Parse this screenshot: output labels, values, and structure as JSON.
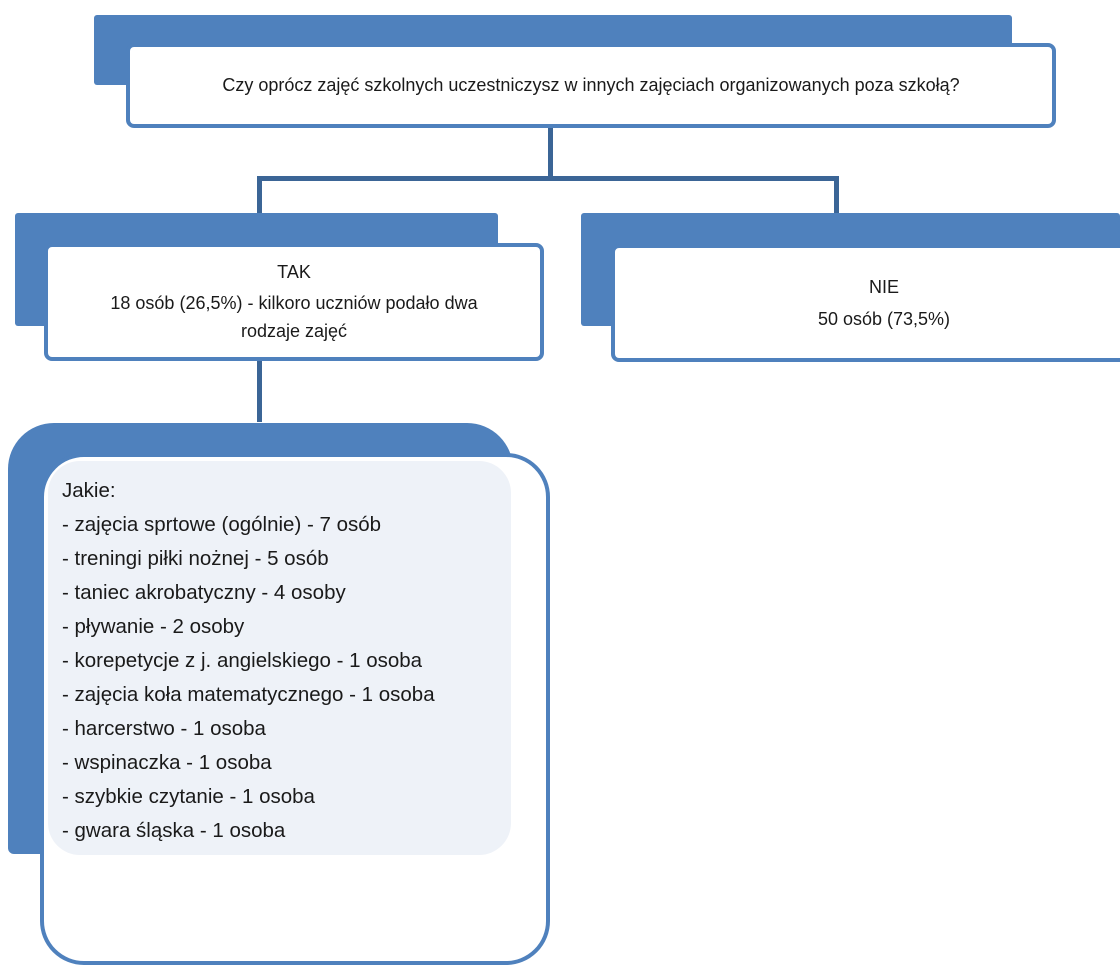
{
  "question": {
    "text": "Czy oprócz zajęć szkolnych uczestniczysz w innych zajęciach organizowanych poza szkołą?"
  },
  "yes_node": {
    "label": "TAK",
    "detail_line1": "18 osób (26,5%) - kilkoro uczniów podało dwa",
    "detail_line2": "rodzaje zajęć"
  },
  "no_node": {
    "label": "NIE",
    "detail": "50 osób (73,5%)"
  },
  "activities": {
    "heading": "Jakie:",
    "items": [
      "- zajęcia sprtowe (ogólnie) - 7 osób",
      "- treningi piłki nożnej - 5 osób",
      "- taniec akrobatyczny - 4 osoby",
      "- pływanie - 2 osoby",
      "- korepetycje z j. angielskiego  - 1 osoba",
      "- zajęcia koła matematycznego - 1 osoba",
      "- harcerstwo - 1 osoba",
      "- wspinaczka - 1 osoba",
      "- szybkie czytanie - 1 osoba",
      "- gwara śląska - 1 osoba"
    ]
  },
  "colors": {
    "accent": "#4f81bd",
    "connector": "#3b6596",
    "tint": "#eef2f8"
  }
}
